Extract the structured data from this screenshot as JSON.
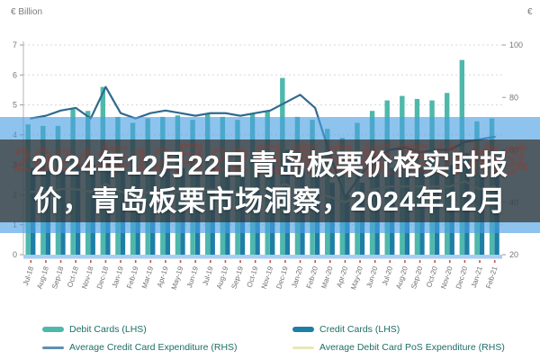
{
  "overlay": {
    "title_line1": "2024年12月22日青岛板栗价格实时报",
    "title_line2": "价，青岛板栗市场洞察，2024年12月",
    "watermark_text": "2024年12月22日青岛板栗价格实时报价，青岛板栗市场洞察"
  },
  "chart_data": {
    "type": "bar+line",
    "categories": [
      "Jul-18",
      "Aug-18",
      "Sep-18",
      "Oct-18",
      "Nov-18",
      "Dec-18",
      "Jan-19",
      "Feb-19",
      "Mar-19",
      "Apr-19",
      "May-19",
      "Jun-19",
      "Jul-19",
      "Aug-19",
      "Sep-19",
      "Oct-19",
      "Nov-19",
      "Dec-19",
      "Jan-20",
      "Feb-20",
      "Mar-20",
      "Apr-20",
      "May-20",
      "Jun-20",
      "Jul-20",
      "Aug-20",
      "Sep-20",
      "Oct-20",
      "Nov-20",
      "Dec-20",
      "Jan-21",
      "Feb-21"
    ],
    "series": [
      {
        "name": "Debit Cards (LHS)",
        "type": "bar",
        "axis": "left",
        "color": "#4eb8ab",
        "values": [
          4.35,
          4.3,
          4.3,
          4.85,
          4.8,
          5.6,
          4.6,
          4.4,
          4.55,
          4.6,
          4.65,
          4.5,
          4.7,
          4.6,
          4.5,
          4.7,
          4.8,
          5.9,
          4.6,
          4.5,
          4.2,
          3.9,
          4.4,
          4.8,
          5.15,
          5.3,
          5.2,
          5.15,
          5.4,
          6.5,
          4.45,
          4.55
        ]
      },
      {
        "name": "Credit Cards (LHS)",
        "type": "bar",
        "axis": "left",
        "color": "#1e7fa6",
        "values": [
          2.9,
          2.8,
          2.8,
          3.0,
          3.0,
          3.4,
          2.8,
          2.7,
          2.8,
          2.9,
          2.9,
          2.8,
          2.9,
          2.9,
          2.8,
          2.9,
          3.0,
          3.5,
          2.9,
          2.8,
          2.4,
          2.0,
          2.4,
          2.7,
          2.9,
          2.9,
          2.9,
          2.9,
          3.0,
          3.4,
          2.7,
          2.8
        ]
      },
      {
        "name": "Average Credit Card Expenditure (RHS)",
        "type": "line",
        "axis": "right",
        "color": "#2f6a8f",
        "values": [
          72,
          73,
          75,
          76,
          72,
          84,
          74,
          72,
          74,
          75,
          74,
          73,
          74,
          74,
          73,
          74,
          75,
          78,
          81,
          76,
          58,
          42,
          50,
          57,
          60,
          61,
          59,
          60,
          60,
          63,
          64,
          65
        ]
      },
      {
        "name": "Average Debit Card PoS Expenditure (RHS)",
        "type": "line",
        "axis": "right",
        "color": "#e9e7b8",
        "values": [
          44,
          44,
          45,
          45,
          44,
          47,
          44,
          43,
          44,
          44,
          44,
          44,
          45,
          44,
          44,
          45,
          45,
          47,
          44,
          44,
          42,
          40,
          43,
          45,
          46,
          46,
          46,
          46,
          46,
          48,
          45,
          46
        ]
      }
    ],
    "left_axis": {
      "unit": "€ Billion",
      "min": 0,
      "max": 7,
      "ticks": [
        0,
        1,
        2,
        3,
        4,
        5,
        6,
        7
      ]
    },
    "right_axis": {
      "unit": "€",
      "min": 20,
      "max": 100,
      "ticks": [
        20,
        40,
        60,
        80,
        100
      ]
    },
    "grid": true,
    "legend_position": "bottom"
  },
  "legend": {
    "items": [
      {
        "label": "Debit Cards (LHS)",
        "color": "#4eb8ab",
        "shape": "bar"
      },
      {
        "label": "Credit Cards (LHS)",
        "color": "#1e7fa6",
        "shape": "bar"
      },
      {
        "label": "Average Credit Card Expenditure (RHS)",
        "color": "#5f8fb4",
        "shape": "line"
      },
      {
        "label": "Average Debit Card PoS Expenditure (RHS)",
        "color": "#e9e7b8",
        "shape": "line"
      }
    ]
  },
  "colors": {
    "overlay_band": "#36444c",
    "overlay_stripe": "#489ee2",
    "baseline_strip": "#a9cdf0",
    "x_tick": "#c05a4a"
  }
}
